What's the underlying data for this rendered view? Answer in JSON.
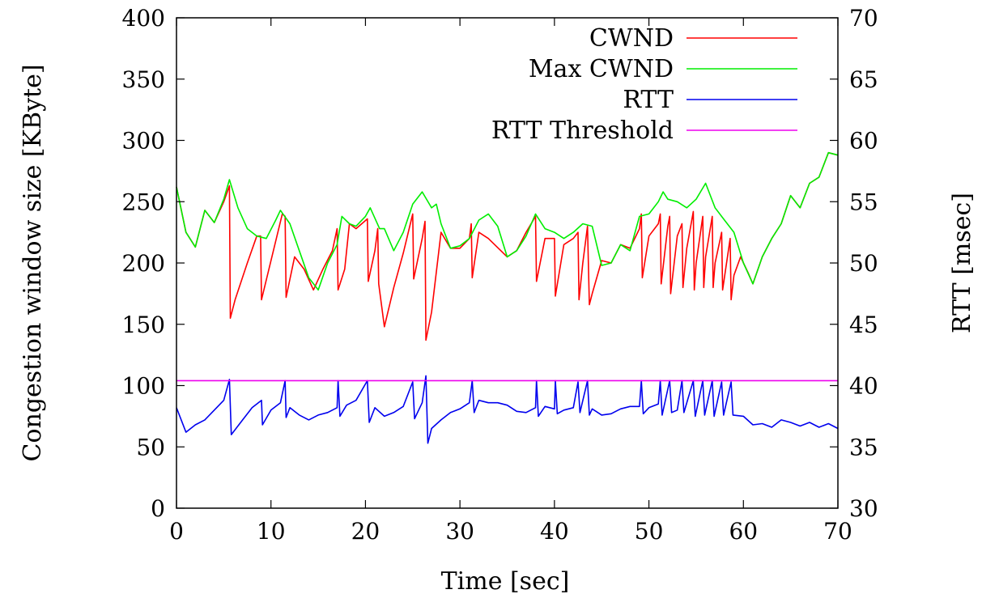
{
  "chart_data": {
    "type": "line",
    "xlabel": "Time [sec]",
    "ylabel_left": "Congestion window size [KByte]",
    "ylabel_right": "RTT [msec]",
    "xlim": [
      0,
      70
    ],
    "ylim_left": [
      0,
      400
    ],
    "ylim_right": [
      30,
      70
    ],
    "x_ticks": [
      0,
      10,
      20,
      30,
      40,
      50,
      60,
      70
    ],
    "y_left_ticks": [
      0,
      50,
      100,
      150,
      200,
      250,
      300,
      350,
      400
    ],
    "y_right_ticks": [
      30,
      35,
      40,
      45,
      50,
      55,
      60,
      65,
      70
    ],
    "grid": false,
    "legend_position": "top-right",
    "series": [
      {
        "name": "CWND",
        "axis": "left",
        "color": "#ff0000",
        "points": [
          [
            0,
            262
          ],
          [
            1,
            225
          ],
          [
            2,
            213
          ],
          [
            3,
            243
          ],
          [
            4,
            233
          ],
          [
            5,
            250
          ],
          [
            5.6,
            263
          ],
          [
            5.7,
            155
          ],
          [
            6.2,
            170
          ],
          [
            7.5,
            200
          ],
          [
            8.5,
            222
          ],
          [
            8.9,
            222
          ],
          [
            9,
            170
          ],
          [
            11.2,
            240
          ],
          [
            11.5,
            238
          ],
          [
            11.6,
            172
          ],
          [
            12.5,
            205
          ],
          [
            13.5,
            195
          ],
          [
            14.5,
            178
          ],
          [
            15.5,
            195
          ],
          [
            16.5,
            210
          ],
          [
            17,
            228
          ],
          [
            17.1,
            178
          ],
          [
            17.8,
            195
          ],
          [
            18.3,
            232
          ],
          [
            19,
            228
          ],
          [
            20.2,
            236
          ],
          [
            20.3,
            185
          ],
          [
            21,
            210
          ],
          [
            21.3,
            228
          ],
          [
            21.4,
            183
          ],
          [
            22,
            148
          ],
          [
            23,
            180
          ],
          [
            24,
            208
          ],
          [
            25,
            240
          ],
          [
            25.1,
            187
          ],
          [
            26,
            220
          ],
          [
            26.3,
            234
          ],
          [
            26.4,
            137
          ],
          [
            27,
            160
          ],
          [
            28,
            225
          ],
          [
            29,
            212
          ],
          [
            30,
            212
          ],
          [
            31,
            220
          ],
          [
            31.2,
            232
          ],
          [
            31.3,
            188
          ],
          [
            32,
            225
          ],
          [
            33,
            220
          ],
          [
            35,
            205
          ],
          [
            36,
            210
          ],
          [
            37,
            225
          ],
          [
            38,
            238
          ],
          [
            38.1,
            185
          ],
          [
            39,
            220
          ],
          [
            40,
            220
          ],
          [
            40.1,
            173
          ],
          [
            41,
            215
          ],
          [
            42,
            220
          ],
          [
            42.5,
            225
          ],
          [
            42.6,
            170
          ],
          [
            43,
            200
          ],
          [
            43.5,
            230
          ],
          [
            43.7,
            166
          ],
          [
            44,
            175
          ],
          [
            45,
            202
          ],
          [
            46,
            200
          ],
          [
            47,
            215
          ],
          [
            48,
            212
          ],
          [
            49,
            228
          ],
          [
            49.2,
            240
          ],
          [
            49.3,
            188
          ],
          [
            50,
            222
          ],
          [
            51,
            232
          ],
          [
            51.2,
            240
          ],
          [
            51.3,
            183
          ],
          [
            52,
            230
          ],
          [
            52.2,
            238
          ],
          [
            52.3,
            175
          ],
          [
            53,
            222
          ],
          [
            53.5,
            232
          ],
          [
            53.6,
            180
          ],
          [
            54,
            212
          ],
          [
            54.7,
            242
          ],
          [
            54.8,
            178
          ],
          [
            55,
            200
          ],
          [
            55.7,
            238
          ],
          [
            55.8,
            180
          ],
          [
            56,
            205
          ],
          [
            56.7,
            238
          ],
          [
            56.8,
            180
          ],
          [
            57,
            200
          ],
          [
            57.7,
            225
          ],
          [
            57.8,
            178
          ],
          [
            58.6,
            220
          ],
          [
            58.7,
            170
          ],
          [
            59,
            190
          ],
          [
            59.7,
            205
          ],
          [
            60.5,
            192
          ],
          [
            61,
            183
          ],
          [
            62,
            205
          ],
          [
            63,
            220
          ],
          [
            64,
            232
          ],
          [
            65,
            255
          ],
          [
            66,
            245
          ],
          [
            67,
            265
          ],
          [
            68,
            270
          ],
          [
            69,
            290
          ],
          [
            70,
            288
          ]
        ]
      },
      {
        "name": "Max CWND",
        "axis": "left",
        "color": "#00ee00",
        "points": [
          [
            0,
            262
          ],
          [
            1,
            225
          ],
          [
            2,
            213
          ],
          [
            3,
            243
          ],
          [
            4,
            233
          ],
          [
            5,
            252
          ],
          [
            5.6,
            268
          ],
          [
            6.5,
            245
          ],
          [
            7.5,
            228
          ],
          [
            8.5,
            222
          ],
          [
            9.5,
            220
          ],
          [
            10.5,
            235
          ],
          [
            11,
            243
          ],
          [
            12,
            232
          ],
          [
            13,
            210
          ],
          [
            14,
            188
          ],
          [
            15,
            178
          ],
          [
            16,
            200
          ],
          [
            17,
            215
          ],
          [
            17.5,
            238
          ],
          [
            18.3,
            232
          ],
          [
            19,
            230
          ],
          [
            20,
            238
          ],
          [
            20.5,
            245
          ],
          [
            21.5,
            228
          ],
          [
            22,
            228
          ],
          [
            23,
            210
          ],
          [
            24,
            225
          ],
          [
            25,
            248
          ],
          [
            26,
            258
          ],
          [
            27,
            245
          ],
          [
            27.5,
            248
          ],
          [
            28,
            232
          ],
          [
            29,
            212
          ],
          [
            30,
            214
          ],
          [
            31,
            220
          ],
          [
            32,
            235
          ],
          [
            33,
            240
          ],
          [
            34,
            230
          ],
          [
            35,
            205
          ],
          [
            36,
            210
          ],
          [
            37,
            222
          ],
          [
            38,
            240
          ],
          [
            39,
            228
          ],
          [
            40,
            225
          ],
          [
            41,
            220
          ],
          [
            42,
            225
          ],
          [
            43,
            232
          ],
          [
            44,
            230
          ],
          [
            45,
            198
          ],
          [
            46,
            200
          ],
          [
            47,
            215
          ],
          [
            48,
            210
          ],
          [
            49,
            238
          ],
          [
            50,
            240
          ],
          [
            51,
            250
          ],
          [
            51.5,
            258
          ],
          [
            52,
            252
          ],
          [
            53,
            250
          ],
          [
            54,
            245
          ],
          [
            55,
            252
          ],
          [
            56,
            265
          ],
          [
            57,
            245
          ],
          [
            58,
            235
          ],
          [
            59,
            225
          ],
          [
            60,
            200
          ],
          [
            61,
            183
          ],
          [
            62,
            205
          ],
          [
            63,
            220
          ],
          [
            64,
            232
          ],
          [
            65,
            255
          ],
          [
            66,
            245
          ],
          [
            67,
            265
          ],
          [
            68,
            270
          ],
          [
            69,
            290
          ],
          [
            70,
            288
          ]
        ]
      },
      {
        "name": "RTT",
        "axis": "right",
        "color": "#0000ee",
        "points": [
          [
            0,
            38.2
          ],
          [
            1,
            36.2
          ],
          [
            2,
            36.8
          ],
          [
            3,
            37.2
          ],
          [
            4,
            38.0
          ],
          [
            5,
            38.8
          ],
          [
            5.6,
            40.5
          ],
          [
            5.8,
            36.0
          ],
          [
            7,
            37.2
          ],
          [
            8,
            38.2
          ],
          [
            9,
            38.8
          ],
          [
            9.1,
            36.8
          ],
          [
            10,
            38.0
          ],
          [
            11,
            38.6
          ],
          [
            11.5,
            40.4
          ],
          [
            11.6,
            37.4
          ],
          [
            12,
            38.2
          ],
          [
            13,
            37.6
          ],
          [
            14,
            37.2
          ],
          [
            15,
            37.6
          ],
          [
            16,
            37.8
          ],
          [
            17,
            38.2
          ],
          [
            17.1,
            40.4
          ],
          [
            17.3,
            37.5
          ],
          [
            18,
            38.4
          ],
          [
            19,
            38.8
          ],
          [
            20.2,
            40.4
          ],
          [
            20.4,
            37.0
          ],
          [
            21,
            38.2
          ],
          [
            22,
            37.5
          ],
          [
            23,
            37.8
          ],
          [
            24,
            38.3
          ],
          [
            25,
            40.3
          ],
          [
            25.2,
            37.3
          ],
          [
            26,
            38.6
          ],
          [
            26.4,
            40.8
          ],
          [
            26.6,
            35.3
          ],
          [
            27,
            36.5
          ],
          [
            28,
            37.2
          ],
          [
            29,
            37.8
          ],
          [
            30,
            38.1
          ],
          [
            31,
            38.6
          ],
          [
            31.3,
            40.4
          ],
          [
            31.5,
            37.8
          ],
          [
            32,
            38.8
          ],
          [
            33,
            38.6
          ],
          [
            34,
            38.6
          ],
          [
            35,
            38.4
          ],
          [
            36,
            37.9
          ],
          [
            37,
            37.8
          ],
          [
            38,
            38.2
          ],
          [
            38.1,
            40.4
          ],
          [
            38.3,
            37.5
          ],
          [
            39,
            38.3
          ],
          [
            40,
            38.1
          ],
          [
            40.1,
            40.4
          ],
          [
            40.3,
            37.7
          ],
          [
            41,
            38.0
          ],
          [
            42,
            38.2
          ],
          [
            42.5,
            40.3
          ],
          [
            42.7,
            37.8
          ],
          [
            43.5,
            40.4
          ],
          [
            43.7,
            37.6
          ],
          [
            44,
            38.1
          ],
          [
            45,
            37.6
          ],
          [
            46,
            37.7
          ],
          [
            47,
            38.1
          ],
          [
            48,
            38.3
          ],
          [
            49,
            38.3
          ],
          [
            49.2,
            40.4
          ],
          [
            49.4,
            37.7
          ],
          [
            50,
            38.2
          ],
          [
            51,
            38.5
          ],
          [
            51.2,
            40.4
          ],
          [
            51.4,
            37.6
          ],
          [
            52.2,
            40.4
          ],
          [
            52.4,
            37.8
          ],
          [
            53,
            38.0
          ],
          [
            53.5,
            40.4
          ],
          [
            53.7,
            37.8
          ],
          [
            54.7,
            40.4
          ],
          [
            54.9,
            37.5
          ],
          [
            55.7,
            40.4
          ],
          [
            55.9,
            37.6
          ],
          [
            56.7,
            40.4
          ],
          [
            56.9,
            37.5
          ],
          [
            57.7,
            40.3
          ],
          [
            57.9,
            37.6
          ],
          [
            58.7,
            40.3
          ],
          [
            58.9,
            37.6
          ],
          [
            60,
            37.5
          ],
          [
            61,
            36.8
          ],
          [
            62,
            36.9
          ],
          [
            63,
            36.6
          ],
          [
            64,
            37.2
          ],
          [
            65,
            37.0
          ],
          [
            66,
            36.7
          ],
          [
            67,
            37.0
          ],
          [
            68,
            36.6
          ],
          [
            69,
            36.9
          ],
          [
            70,
            36.5
          ]
        ]
      },
      {
        "name": "RTT Threshold",
        "axis": "right",
        "color": "#ee00ee",
        "points": [
          [
            0,
            40.4
          ],
          [
            70,
            40.4
          ]
        ]
      }
    ]
  }
}
